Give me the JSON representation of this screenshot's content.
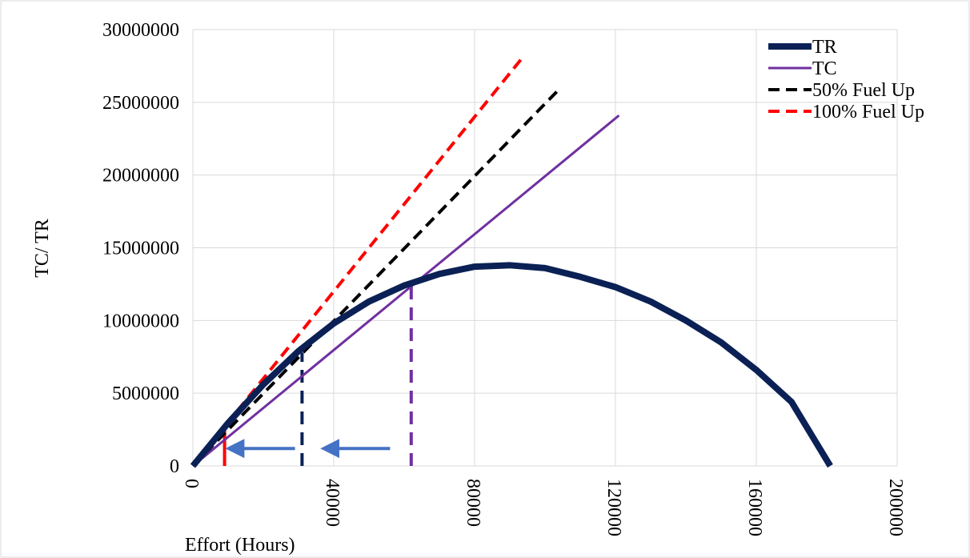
{
  "chart_data": {
    "type": "line",
    "title": "",
    "xlabel": "Effort (Hours)",
    "ylabel": "TC/ TR",
    "xlim": [
      0,
      200000
    ],
    "ylim": [
      0,
      30000000
    ],
    "x_ticks": [
      0,
      40000,
      80000,
      120000,
      160000,
      200000
    ],
    "x_tick_labels": [
      "0",
      "40000",
      "80000",
      "120000",
      "160000",
      "200000"
    ],
    "y_ticks": [
      0,
      5000000,
      10000000,
      15000000,
      20000000,
      25000000,
      30000000
    ],
    "y_tick_labels": [
      "0",
      "5000000",
      "10000000",
      "15000000",
      "20000000",
      "25000000",
      "30000000"
    ],
    "grid": true,
    "legend_position": "top-right",
    "series": [
      {
        "name": "TR",
        "color": "#0b2155",
        "style": "solid",
        "width": "thick",
        "x": [
          0,
          10000,
          20000,
          30000,
          40000,
          50000,
          60000,
          70000,
          80000,
          90000,
          100000,
          110000,
          120000,
          130000,
          140000,
          150000,
          160000,
          170000,
          181000
        ],
        "y": [
          0,
          2950000,
          5600000,
          7900000,
          9800000,
          11300000,
          12400000,
          13200000,
          13700000,
          13800000,
          13600000,
          13000000,
          12300000,
          11300000,
          10000000,
          8500000,
          6600000,
          4400000,
          0
        ]
      },
      {
        "name": "TC",
        "color": "#7030a0",
        "style": "solid",
        "width": "thin",
        "x": [
          0,
          121000
        ],
        "y": [
          0,
          24100000
        ]
      },
      {
        "name": "50% Fuel Up",
        "color": "#000000",
        "style": "dashed",
        "width": "medium",
        "x": [
          0,
          104000
        ],
        "y": [
          0,
          25900000
        ]
      },
      {
        "name": "100% Fuel Up",
        "color": "#ff0000",
        "style": "dashed",
        "width": "medium",
        "x": [
          0,
          94000
        ],
        "y": [
          0,
          28200000
        ]
      }
    ],
    "annotations": [
      {
        "type": "vertical_dashed_line",
        "color": "#7030a0",
        "x": 62000,
        "y_from": 0,
        "y_to": 12400000
      },
      {
        "type": "vertical_dashed_line",
        "color": "#0b2155",
        "x": 31000,
        "y_from": 0,
        "y_to": 7800000
      },
      {
        "type": "vertical_line",
        "color": "#ff0000",
        "x": 9000,
        "y_from": 0,
        "y_to": 2700000
      },
      {
        "type": "arrow_left",
        "color": "#4472c4",
        "x_from": 56000,
        "x_to": 38000,
        "y": 1200000
      },
      {
        "type": "arrow_left",
        "color": "#4472c4",
        "x_from": 29000,
        "x_to": 11000,
        "y": 1200000
      }
    ]
  }
}
